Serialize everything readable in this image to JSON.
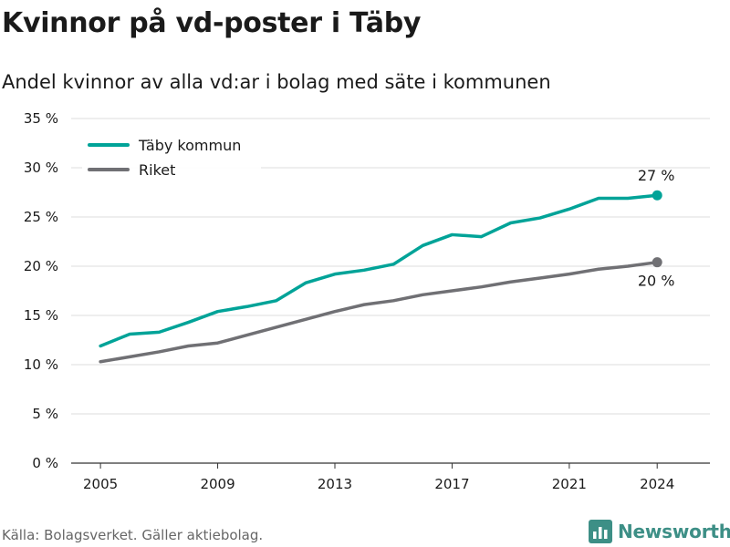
{
  "header": {
    "title": "Kvinnor på vd-poster i Täby",
    "subtitle": "Andel kvinnor av alla vd:ar i bolag med säte i kommunen"
  },
  "footer": {
    "source": "Källa: Bolagsverket. Gäller aktiebolag.",
    "brand": "Newsworthy",
    "brand_icon": "bar-chart-icon"
  },
  "colors": {
    "taby": "#00a398",
    "riket": "#707074",
    "grid": "#dddddd",
    "text": "#1a1a1a",
    "brand": "#3d8f86"
  },
  "chart_data": {
    "type": "line",
    "title": "Kvinnor på vd-poster i Täby",
    "subtitle": "Andel kvinnor av alla vd:ar i bolag med säte i kommunen",
    "xlabel": "",
    "ylabel": "",
    "x": [
      2005,
      2006,
      2007,
      2008,
      2009,
      2010,
      2011,
      2012,
      2013,
      2014,
      2015,
      2016,
      2017,
      2018,
      2019,
      2020,
      2021,
      2022,
      2023,
      2024
    ],
    "x_ticks": [
      2005,
      2009,
      2013,
      2017,
      2021,
      2024
    ],
    "ylim": [
      0,
      35
    ],
    "y_ticks": [
      0,
      5,
      10,
      15,
      20,
      25,
      30,
      35
    ],
    "y_tick_labels": [
      "0 %",
      "5 %",
      "10 %",
      "15 %",
      "20 %",
      "25 %",
      "30 %",
      "35 %"
    ],
    "grid": true,
    "legend_position": "top-left",
    "series": [
      {
        "name": "Täby kommun",
        "color": "#00a398",
        "values": [
          11.9,
          13.1,
          13.3,
          14.3,
          15.4,
          15.9,
          16.5,
          18.3,
          19.2,
          19.6,
          20.2,
          22.1,
          23.2,
          23.0,
          24.4,
          24.9,
          25.8,
          26.9,
          26.9,
          27.2
        ],
        "end_label": "27 %"
      },
      {
        "name": "Riket",
        "color": "#707074",
        "values": [
          10.3,
          10.8,
          11.3,
          11.9,
          12.2,
          13.0,
          13.8,
          14.6,
          15.4,
          16.1,
          16.5,
          17.1,
          17.5,
          17.9,
          18.4,
          18.8,
          19.2,
          19.7,
          20.0,
          20.4
        ],
        "end_label": "20 %"
      }
    ]
  }
}
